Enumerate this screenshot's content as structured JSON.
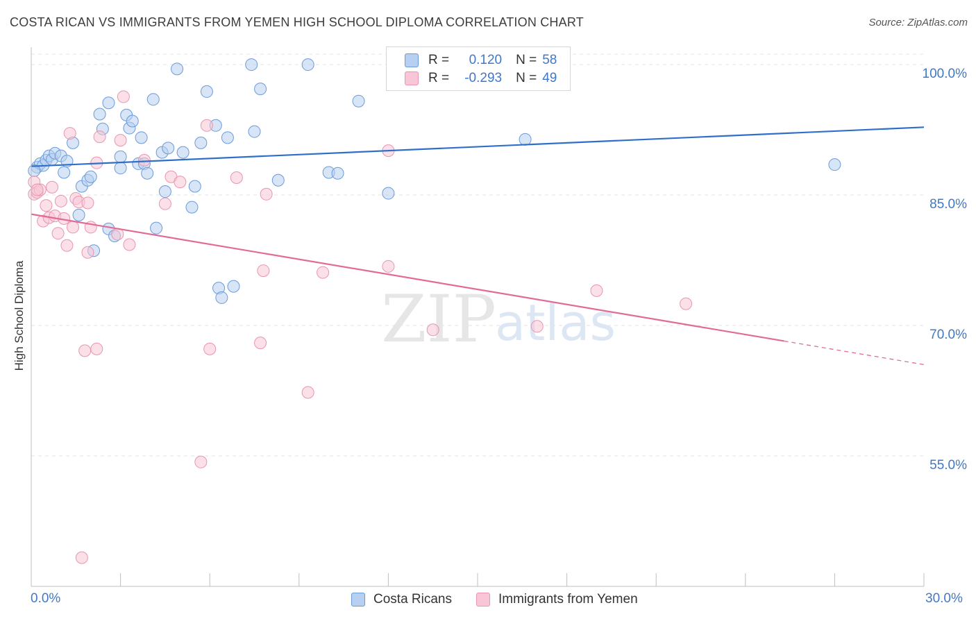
{
  "title": "COSTA RICAN VS IMMIGRANTS FROM YEMEN HIGH SCHOOL DIPLOMA CORRELATION CHART",
  "source": "Source: ZipAtlas.com",
  "watermark": {
    "zip": "ZIP",
    "atlas": "atlas"
  },
  "legend": {
    "series1": {
      "r_label": "R =",
      "r_value": "0.120",
      "n_label": "N =",
      "n_value": "58"
    },
    "series2": {
      "r_label": "R =",
      "r_value": "-0.293",
      "n_label": "N =",
      "n_value": "49"
    }
  },
  "bottom_legend": {
    "series1": "Costa Ricans",
    "series2": "Immigrants from Yemen"
  },
  "colors": {
    "blue_fill": "#b7cff1",
    "blue_stroke": "#6a9ad8",
    "blue_line": "#2f6fc9",
    "pink_fill": "#f8c6d6",
    "pink_stroke": "#e994b1",
    "pink_line": "#e26a97",
    "tick_label": "#3f78c9",
    "grid": "#e3e3e3"
  },
  "chart_data": {
    "type": "scatter",
    "title": "COSTA RICAN VS IMMIGRANTS FROM YEMEN HIGH SCHOOL DIPLOMA CORRELATION CHART",
    "xlabel": "",
    "ylabel": "High School Diploma",
    "xlim": [
      0,
      30
    ],
    "ylim": [
      40,
      102
    ],
    "x_tick_labels": [
      "0.0%",
      "30.0%"
    ],
    "y_ticks": [
      55,
      70,
      85,
      100
    ],
    "y_tick_labels": [
      "55.0%",
      "70.0%",
      "85.0%",
      "100.0%"
    ],
    "legend_position": "top-center",
    "series": [
      {
        "name": "Costa Ricans",
        "r": 0.12,
        "n": 58,
        "trend": {
          "x0": 0,
          "y0": 88.3,
          "x1": 30,
          "y1": 92.8,
          "dashed_from": null
        },
        "points": [
          [
            0.2,
            88.2
          ],
          [
            0.3,
            88.6
          ],
          [
            0.4,
            88.4
          ],
          [
            0.5,
            89.0
          ],
          [
            0.6,
            89.5
          ],
          [
            0.7,
            89.1
          ],
          [
            0.8,
            89.8
          ],
          [
            1.0,
            89.5
          ],
          [
            1.1,
            87.6
          ],
          [
            1.2,
            88.9
          ],
          [
            1.4,
            91.0
          ],
          [
            1.6,
            82.7
          ],
          [
            1.7,
            86.0
          ],
          [
            1.9,
            86.7
          ],
          [
            2.0,
            87.1
          ],
          [
            2.1,
            78.6
          ],
          [
            2.3,
            94.3
          ],
          [
            2.4,
            92.6
          ],
          [
            2.6,
            95.6
          ],
          [
            2.6,
            81.1
          ],
          [
            2.8,
            80.3
          ],
          [
            3.0,
            88.1
          ],
          [
            3.0,
            89.4
          ],
          [
            3.2,
            94.2
          ],
          [
            3.3,
            92.7
          ],
          [
            3.4,
            93.5
          ],
          [
            3.6,
            88.6
          ],
          [
            3.7,
            91.6
          ],
          [
            3.8,
            88.6
          ],
          [
            3.9,
            87.5
          ],
          [
            4.1,
            96.0
          ],
          [
            4.2,
            81.2
          ],
          [
            4.4,
            89.9
          ],
          [
            4.5,
            85.4
          ],
          [
            4.6,
            90.4
          ],
          [
            4.9,
            99.5
          ],
          [
            5.1,
            89.9
          ],
          [
            5.4,
            83.6
          ],
          [
            5.5,
            86.0
          ],
          [
            5.7,
            91.0
          ],
          [
            5.9,
            96.9
          ],
          [
            6.2,
            93.0
          ],
          [
            6.3,
            74.3
          ],
          [
            6.4,
            73.2
          ],
          [
            6.6,
            91.6
          ],
          [
            6.8,
            74.5
          ],
          [
            7.4,
            100.0
          ],
          [
            7.5,
            92.3
          ],
          [
            7.7,
            97.2
          ],
          [
            8.3,
            86.7
          ],
          [
            9.3,
            100.0
          ],
          [
            10.0,
            87.6
          ],
          [
            10.3,
            87.5
          ],
          [
            11.0,
            95.8
          ],
          [
            12.0,
            85.2
          ],
          [
            16.6,
            91.4
          ],
          [
            27.0,
            88.5
          ],
          [
            0.1,
            87.8
          ]
        ]
      },
      {
        "name": "Immigrants from Yemen",
        "r": -0.293,
        "n": 49,
        "trend": {
          "x0": 0,
          "y0": 82.8,
          "x1": 30,
          "y1": 65.5,
          "dashed_from": 25.3
        },
        "points": [
          [
            0.1,
            85.1
          ],
          [
            0.1,
            86.5
          ],
          [
            0.2,
            85.3
          ],
          [
            0.3,
            85.6
          ],
          [
            0.4,
            82.0
          ],
          [
            0.5,
            83.8
          ],
          [
            0.6,
            82.4
          ],
          [
            0.7,
            85.9
          ],
          [
            0.8,
            82.6
          ],
          [
            0.9,
            80.6
          ],
          [
            1.0,
            84.3
          ],
          [
            1.1,
            82.3
          ],
          [
            1.2,
            79.2
          ],
          [
            1.3,
            92.1
          ],
          [
            1.4,
            81.3
          ],
          [
            1.5,
            84.6
          ],
          [
            1.6,
            84.2
          ],
          [
            1.8,
            67.1
          ],
          [
            1.9,
            78.4
          ],
          [
            1.9,
            84.1
          ],
          [
            2.0,
            81.3
          ],
          [
            2.2,
            67.3
          ],
          [
            2.2,
            88.7
          ],
          [
            2.3,
            91.7
          ],
          [
            2.9,
            80.5
          ],
          [
            3.0,
            91.3
          ],
          [
            3.1,
            96.3
          ],
          [
            3.3,
            79.3
          ],
          [
            3.8,
            89.0
          ],
          [
            4.5,
            84.0
          ],
          [
            4.7,
            87.1
          ],
          [
            5.0,
            86.5
          ],
          [
            5.7,
            54.3
          ],
          [
            5.9,
            93.0
          ],
          [
            6.0,
            67.3
          ],
          [
            6.9,
            87.0
          ],
          [
            7.7,
            68.0
          ],
          [
            7.8,
            76.3
          ],
          [
            7.9,
            85.1
          ],
          [
            9.3,
            62.3
          ],
          [
            9.8,
            76.1
          ],
          [
            12.0,
            90.1
          ],
          [
            12.0,
            76.8
          ],
          [
            13.5,
            69.5
          ],
          [
            17.0,
            69.9
          ],
          [
            19.0,
            74.0
          ],
          [
            22.0,
            72.5
          ],
          [
            1.7,
            43.3
          ],
          [
            0.2,
            85.6
          ]
        ]
      }
    ]
  }
}
